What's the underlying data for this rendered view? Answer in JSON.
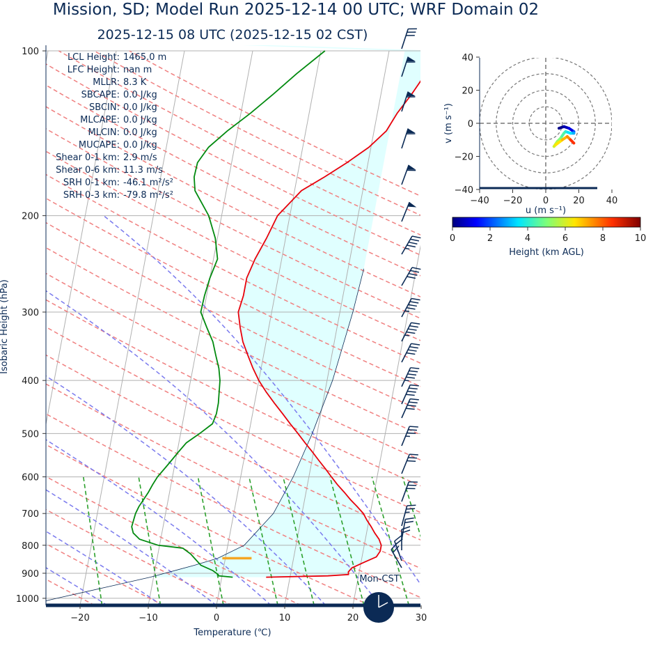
{
  "header": {
    "title": "Mission, SD; Model Run 2025-12-14 00 UTC; WRF Domain 02",
    "subtitle": "2025-12-15 08 UTC  (2025-12-15 02 CST)"
  },
  "stats": [
    {
      "label": "LCL Height:",
      "value": "1465.0 m"
    },
    {
      "label": "LFC Height:",
      "value": "nan m"
    },
    {
      "label": "MLLR:",
      "value": "8.3 K"
    },
    {
      "label": "SBCAPE:",
      "value": "0.0 J/kg"
    },
    {
      "label": "SBCIN:",
      "value": "0.0 J/kg"
    },
    {
      "label": "MLCAPE:",
      "value": "0.0 J/kg"
    },
    {
      "label": "MLCIN:",
      "value": "0.0 J/kg"
    },
    {
      "label": "MUCAPE:",
      "value": "0.0 J/kg"
    },
    {
      "label": "Shear 0-1 km:",
      "value": "2.9 m/s"
    },
    {
      "label": "Shear 0-6 km:",
      "value": "11.3 m/s"
    },
    {
      "label": "SRH 0-1 km:",
      "value": "-46.1 m²/s²"
    },
    {
      "label": "SRH 0-3 km:",
      "value": "-79.8 m²/s²"
    }
  ],
  "clock": {
    "label": "Mon-CST"
  },
  "colors": {
    "text": "#0b2a55",
    "temperature": "#e8000b",
    "dewpoint": "#028a0f",
    "parcel": "#0b2a55",
    "dry_adiabat": "#f08080",
    "moist_adiabat": "#7a7aee",
    "mixing_ratio": "#2ca02c",
    "isotherm": "#b0b0b0",
    "cape_fill": "#e0ffff",
    "lcl": "#f5a623",
    "barb": "#0b2a55"
  },
  "chart_data": [
    {
      "type": "skew-t",
      "xlabel": "Temperature (℃)",
      "ylabel": "Isobaric Height (hPa)",
      "xlim": [
        -25,
        30
      ],
      "ylim": [
        1030,
        100
      ],
      "xticks": [
        -20,
        -10,
        0,
        10,
        20,
        30
      ],
      "yticks": [
        100,
        200,
        300,
        400,
        500,
        600,
        700,
        800,
        900,
        1000
      ],
      "temperature": {
        "p": [
          915,
          910,
          905,
          895,
          880,
          860,
          840,
          820,
          800,
          780,
          760,
          740,
          720,
          700,
          680,
          660,
          640,
          620,
          600,
          580,
          560,
          540,
          520,
          500,
          480,
          460,
          440,
          420,
          400,
          380,
          360,
          340,
          320,
          300,
          280,
          260,
          240,
          220,
          200,
          180,
          170,
          160,
          150,
          140,
          130,
          120,
          110,
          100
        ],
        "t": [
          6.5,
          15.5,
          18.5,
          18.4,
          18.8,
          20.4,
          22.1,
          22.5,
          22.5,
          22.0,
          21.2,
          20.5,
          19.7,
          19.0,
          17.9,
          16.7,
          15.6,
          14.4,
          13.3,
          12.2,
          11.0,
          9.8,
          8.5,
          7.2,
          5.8,
          4.4,
          2.9,
          1.4,
          0.0,
          -1.2,
          -2.3,
          -3.4,
          -4.2,
          -4.9,
          -4.6,
          -4.6,
          -3.9,
          -2.8,
          -1.8,
          1.0,
          4.0,
          6.9,
          9.7,
          11.8,
          12.9,
          14.5,
          16.0,
          17.8
        ]
      },
      "dewpoint": {
        "p": [
          915,
          910,
          905,
          890,
          870,
          850,
          830,
          810,
          800,
          780,
          760,
          740,
          720,
          700,
          680,
          660,
          640,
          620,
          600,
          580,
          560,
          540,
          520,
          500,
          480,
          460,
          440,
          420,
          400,
          380,
          360,
          340,
          320,
          300,
          280,
          260,
          240,
          220,
          200,
          180,
          170,
          160,
          150,
          140,
          130,
          120,
          110,
          100
        ],
        "td": [
          1.6,
          -0.5,
          -0.6,
          -1.5,
          -3.4,
          -4.3,
          -5.2,
          -6.5,
          -10.2,
          -13.1,
          -14.2,
          -14.6,
          -14.5,
          -14.4,
          -14.1,
          -13.6,
          -13.1,
          -12.7,
          -12.2,
          -11.4,
          -10.6,
          -9.8,
          -8.9,
          -7.2,
          -5.6,
          -5.3,
          -5.3,
          -5.5,
          -5.7,
          -6.2,
          -7.0,
          -7.8,
          -9.1,
          -10.4,
          -10.3,
          -10.0,
          -9.4,
          -10.3,
          -11.9,
          -14.6,
          -15.1,
          -15.0,
          -13.8,
          -11.5,
          -8.6,
          -5.8,
          -2.9,
          0.6
        ]
      },
      "parcel": {
        "p": [
          1030,
          1000,
          950,
          915,
          870,
          845,
          800,
          700,
          600,
          500,
          400,
          300,
          250
        ],
        "t": [
          -27.8,
          -23.6,
          -16.0,
          -10.5,
          -4.3,
          -1.1,
          2.4,
          5.8,
          7.7,
          9.3,
          10.8,
          11.9,
          12.3
        ]
      },
      "lcl": {
        "p": 845,
        "t": 1.7
      }
    },
    {
      "type": "hodograph",
      "xlabel": "u (m s⁻¹)",
      "ylabel": "v (m s⁻¹)",
      "xlim": [
        -40,
        40
      ],
      "ylim": [
        -40,
        40
      ],
      "ticks": [
        -40,
        -20,
        0,
        20,
        40
      ],
      "u": [
        8,
        11,
        14,
        17,
        17,
        15,
        12,
        11,
        9,
        7,
        5,
        6,
        10,
        13,
        15,
        17
      ],
      "v": [
        -3,
        -2,
        -3,
        -5,
        -6,
        -6,
        -5,
        -6,
        -9,
        -11,
        -14,
        -13,
        -10,
        -8,
        -10,
        -12
      ],
      "height_km": [
        0.1,
        0.5,
        1.0,
        2.0,
        3.0,
        3.5,
        4.0,
        4.5,
        5.0,
        5.5,
        6.0,
        6.5,
        7.0,
        7.5,
        8.5,
        9.5
      ]
    },
    {
      "type": "colorbar",
      "label": "Height (km AGL)",
      "range": [
        0,
        10
      ],
      "ticks": [
        0,
        2,
        4,
        6,
        8,
        10
      ]
    }
  ]
}
